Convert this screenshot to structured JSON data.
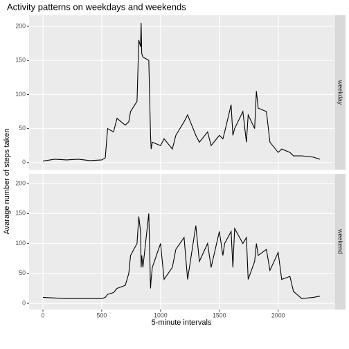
{
  "chart_data": {
    "type": "line",
    "title": "Activity patterns on weekdays and weekends",
    "xlabel": "5-minute intervals",
    "ylabel": "Avarage number of steps taken",
    "color": "#000000",
    "grid": true,
    "x": [
      0,
      100,
      200,
      300,
      400,
      500,
      530,
      550,
      600,
      630,
      700,
      730,
      745,
      800,
      815,
      830,
      835,
      840,
      850,
      900,
      915,
      920,
      930,
      1000,
      1030,
      1100,
      1130,
      1200,
      1230,
      1300,
      1330,
      1400,
      1430,
      1500,
      1530,
      1545,
      1600,
      1615,
      1630,
      1700,
      1730,
      1745,
      1800,
      1815,
      1830,
      1900,
      1930,
      2000,
      2030,
      2100,
      2130,
      2200,
      2300,
      2355
    ],
    "facets": [
      {
        "label": "weekday",
        "values": [
          2.3,
          5,
          4,
          5,
          3,
          4,
          7,
          50,
          45,
          65,
          55,
          60,
          75,
          90,
          180,
          170,
          205,
          160,
          155,
          150,
          40,
          20,
          30,
          25,
          35,
          20,
          40,
          60,
          70,
          40,
          30,
          45,
          25,
          40,
          35,
          45,
          85,
          40,
          50,
          75,
          30,
          70,
          50,
          105,
          80,
          75,
          30,
          15,
          20,
          15,
          10,
          10,
          8,
          5
        ]
      },
      {
        "label": "weekend",
        "values": [
          10,
          9,
          8,
          8,
          8,
          8,
          10,
          15,
          18,
          25,
          30,
          50,
          80,
          100,
          145,
          120,
          60,
          80,
          60,
          150,
          25,
          40,
          60,
          100,
          40,
          60,
          90,
          110,
          40,
          130,
          70,
          100,
          60,
          120,
          80,
          100,
          120,
          60,
          125,
          100,
          110,
          40,
          70,
          100,
          80,
          90,
          55,
          85,
          40,
          45,
          20,
          8,
          10,
          12
        ]
      }
    ],
    "xlim": [
      -117.75,
      2472.75
    ],
    "ylim": [
      -10.3,
      216.3
    ],
    "xticks": [
      0,
      500,
      1000,
      1500,
      2000
    ],
    "yticks": [
      0,
      50,
      100,
      150,
      200
    ]
  }
}
